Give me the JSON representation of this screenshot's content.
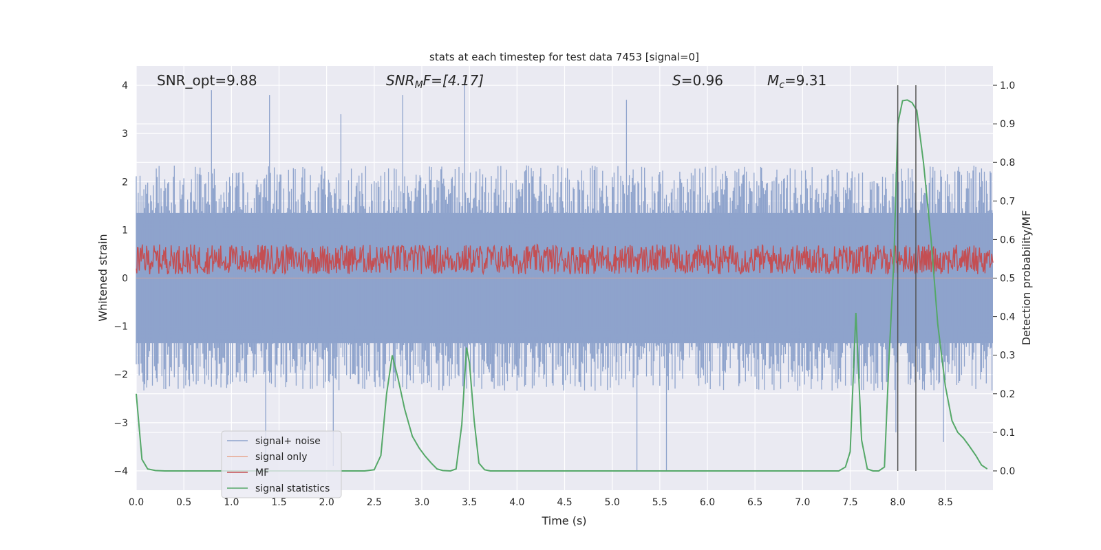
{
  "chart_data": {
    "type": "line",
    "title": "stats at each timestep for test data 7453 [signal=0]",
    "xlabel": "Time (s)",
    "ylabel": "Whitened strain",
    "y2label": "Detection probability/MF",
    "xlim": [
      0.0,
      9.0
    ],
    "ylim": [
      -4.4,
      4.4
    ],
    "y2lim": [
      -0.05,
      1.05
    ],
    "xticks": [
      0.0,
      0.5,
      1.0,
      1.5,
      2.0,
      2.5,
      3.0,
      3.5,
      4.0,
      4.5,
      5.0,
      5.5,
      6.0,
      6.5,
      7.0,
      7.5,
      8.0,
      8.5
    ],
    "xtick_labels": [
      "0.0",
      "0.5",
      "1.0",
      "1.5",
      "2.0",
      "2.5",
      "3.0",
      "3.5",
      "4.0",
      "4.5",
      "5.0",
      "5.5",
      "6.0",
      "6.5",
      "7.0",
      "7.5",
      "8.0",
      "8.5"
    ],
    "yticks": [
      -4,
      -3,
      -2,
      -1,
      0,
      1,
      2,
      3,
      4
    ],
    "ytick_labels": [
      "−4",
      "−3",
      "−2",
      "−1",
      "0",
      "1",
      "2",
      "3",
      "4"
    ],
    "y2ticks": [
      0.0,
      0.1,
      0.2,
      0.3,
      0.4,
      0.5,
      0.6,
      0.7,
      0.8,
      0.9,
      1.0
    ],
    "y2tick_labels": [
      "0.0",
      "0.1",
      "0.2",
      "0.3",
      "0.4",
      "0.5",
      "0.6",
      "0.7",
      "0.8",
      "0.9",
      "1.0"
    ],
    "annotations": {
      "snr_opt": "SNR_opt=9.88",
      "snr_mf_main": "SNR",
      "snr_mf_sub": "M",
      "snr_mf_rest": "F=[4.17]",
      "s_var": "S",
      "s_rest": "=0.96",
      "mc_var": "M",
      "mc_sub": "c",
      "mc_rest": "=9.31"
    },
    "vlines": [
      8.0,
      8.19
    ],
    "legend": {
      "placement": "lower-left",
      "entries": [
        "signal+ noise",
        "signal only",
        "MF",
        "signal statistics"
      ]
    },
    "series": [
      {
        "name": "signal+ noise",
        "axis": "left",
        "color": "#8ea3cc",
        "style": "noise",
        "x_range": [
          0.0,
          9.0
        ],
        "envelope_typical": 1.8,
        "peak_values": [
          {
            "x": 0.79,
            "y": 3.9
          },
          {
            "x": 1.4,
            "y": 3.8
          },
          {
            "x": 2.15,
            "y": 3.4
          },
          {
            "x": 2.8,
            "y": 3.8
          },
          {
            "x": 3.45,
            "y": 4.0
          },
          {
            "x": 5.15,
            "y": 3.7
          },
          {
            "x": 5.57,
            "y": -4.0
          },
          {
            "x": 5.26,
            "y": -4.0
          },
          {
            "x": 7.98,
            "y": -3.2
          },
          {
            "x": 2.07,
            "y": -3.9
          },
          {
            "x": 1.36,
            "y": -3.8
          },
          {
            "x": 8.48,
            "y": -3.4
          }
        ]
      },
      {
        "name": "signal only",
        "axis": "left",
        "color": "#e8a68e",
        "style": "line",
        "x": [
          0.0,
          9.0
        ],
        "y": [
          0.0,
          0.0
        ]
      },
      {
        "name": "MF",
        "axis": "left",
        "color": "#c44e52",
        "style": "band",
        "x_range": [
          0.0,
          9.0
        ],
        "band": [
          0.0,
          0.9
        ]
      },
      {
        "name": "signal statistics",
        "axis": "right",
        "color": "#55a868",
        "style": "line",
        "x": [
          0.0,
          0.06,
          0.12,
          0.2,
          0.3,
          0.5,
          1.0,
          1.5,
          2.0,
          2.4,
          2.5,
          2.57,
          2.63,
          2.69,
          2.75,
          2.82,
          2.9,
          2.97,
          3.03,
          3.1,
          3.16,
          3.22,
          3.3,
          3.36,
          3.42,
          3.47,
          3.5,
          3.55,
          3.6,
          3.66,
          3.72,
          3.8,
          4.0,
          5.0,
          6.0,
          7.0,
          7.38,
          7.45,
          7.5,
          7.56,
          7.62,
          7.68,
          7.74,
          7.8,
          7.86,
          7.91,
          7.96,
          8.0,
          8.05,
          8.1,
          8.15,
          8.2,
          8.27,
          8.35,
          8.42,
          8.5,
          8.57,
          8.63,
          8.69,
          8.75,
          8.82,
          8.88,
          8.94
        ],
        "y": [
          0.2,
          0.03,
          0.005,
          0.001,
          0.0,
          0.0,
          0.0,
          0.0,
          0.0,
          0.0,
          0.003,
          0.04,
          0.2,
          0.3,
          0.24,
          0.16,
          0.09,
          0.06,
          0.04,
          0.02,
          0.005,
          0.001,
          0.0,
          0.005,
          0.12,
          0.32,
          0.28,
          0.13,
          0.02,
          0.003,
          0.0,
          0.0,
          0.0,
          0.0,
          0.0,
          0.0,
          0.0,
          0.01,
          0.05,
          0.41,
          0.08,
          0.005,
          0.0,
          0.0,
          0.01,
          0.3,
          0.55,
          0.9,
          0.96,
          0.962,
          0.955,
          0.935,
          0.8,
          0.6,
          0.38,
          0.22,
          0.13,
          0.1,
          0.085,
          0.065,
          0.04,
          0.015,
          0.005
        ]
      }
    ]
  }
}
